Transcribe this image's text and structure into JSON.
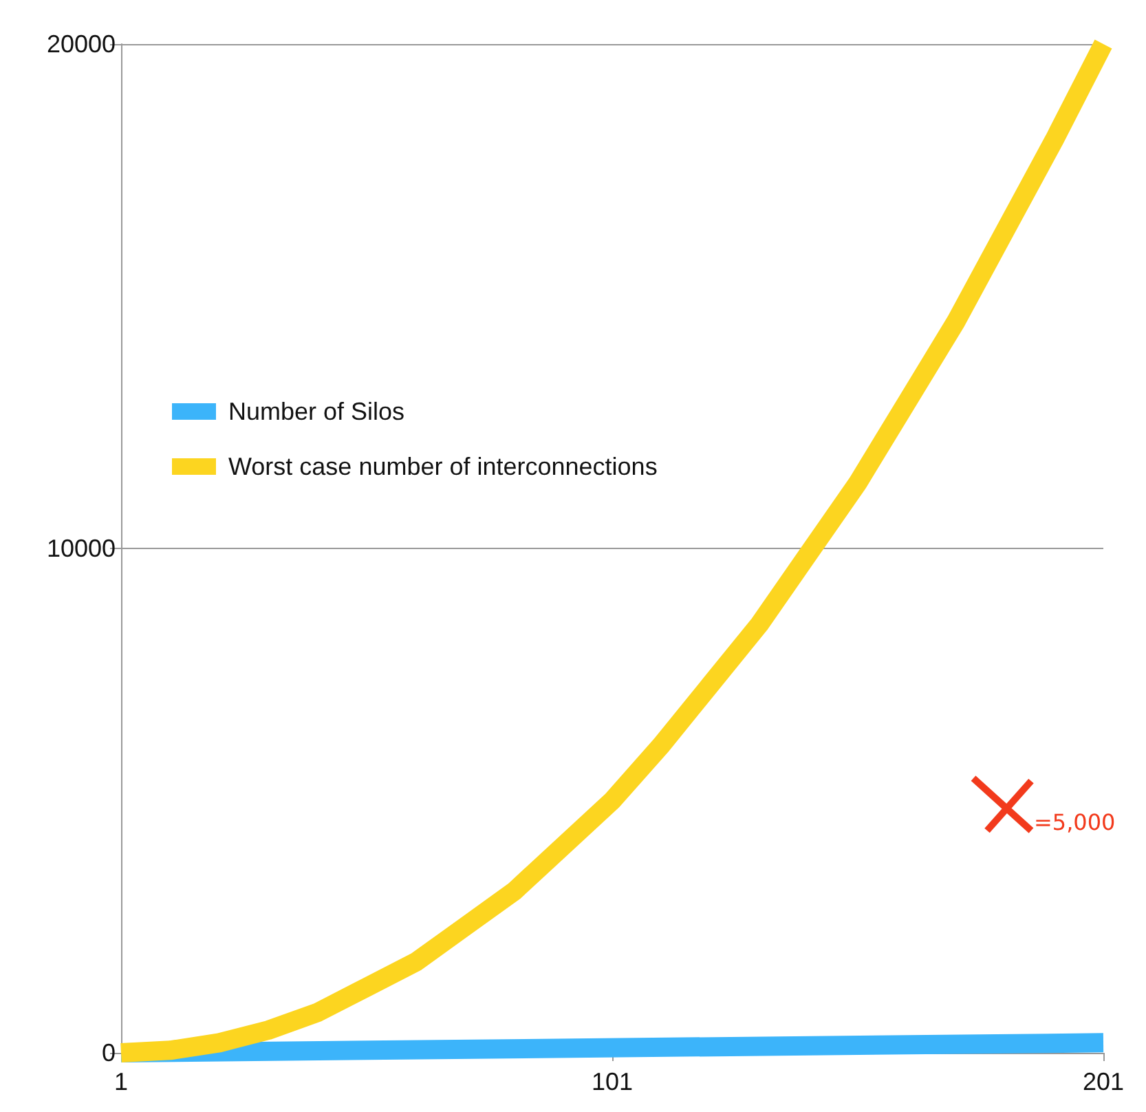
{
  "chart_data": {
    "type": "line",
    "x": [
      1,
      11,
      21,
      31,
      41,
      51,
      61,
      71,
      81,
      91,
      101,
      111,
      121,
      131,
      141,
      151,
      161,
      171,
      181,
      191,
      201
    ],
    "series": [
      {
        "name": "Number of Silos",
        "color": "#3cb4fa",
        "x": [
          1,
          201
        ],
        "values": [
          0,
          200
        ]
      },
      {
        "name": "Worst case number of interconnections",
        "color": "#fcd520",
        "values": [
          0,
          50,
          200,
          450,
          800,
          1300,
          1800,
          2500,
          3200,
          4100,
          5000,
          6100,
          7300,
          8500,
          9900,
          11300,
          12900,
          14500,
          16300,
          18100,
          20000
        ]
      }
    ],
    "xlim": [
      1,
      201
    ],
    "xticks": [
      1,
      101,
      201
    ],
    "ylim": [
      0,
      20000
    ],
    "yticks": [
      0,
      10000,
      20000
    ],
    "grid": "y",
    "legend": "left",
    "marker": "none",
    "line_style": "solid",
    "annotations": [
      "=5,000"
    ]
  }
}
